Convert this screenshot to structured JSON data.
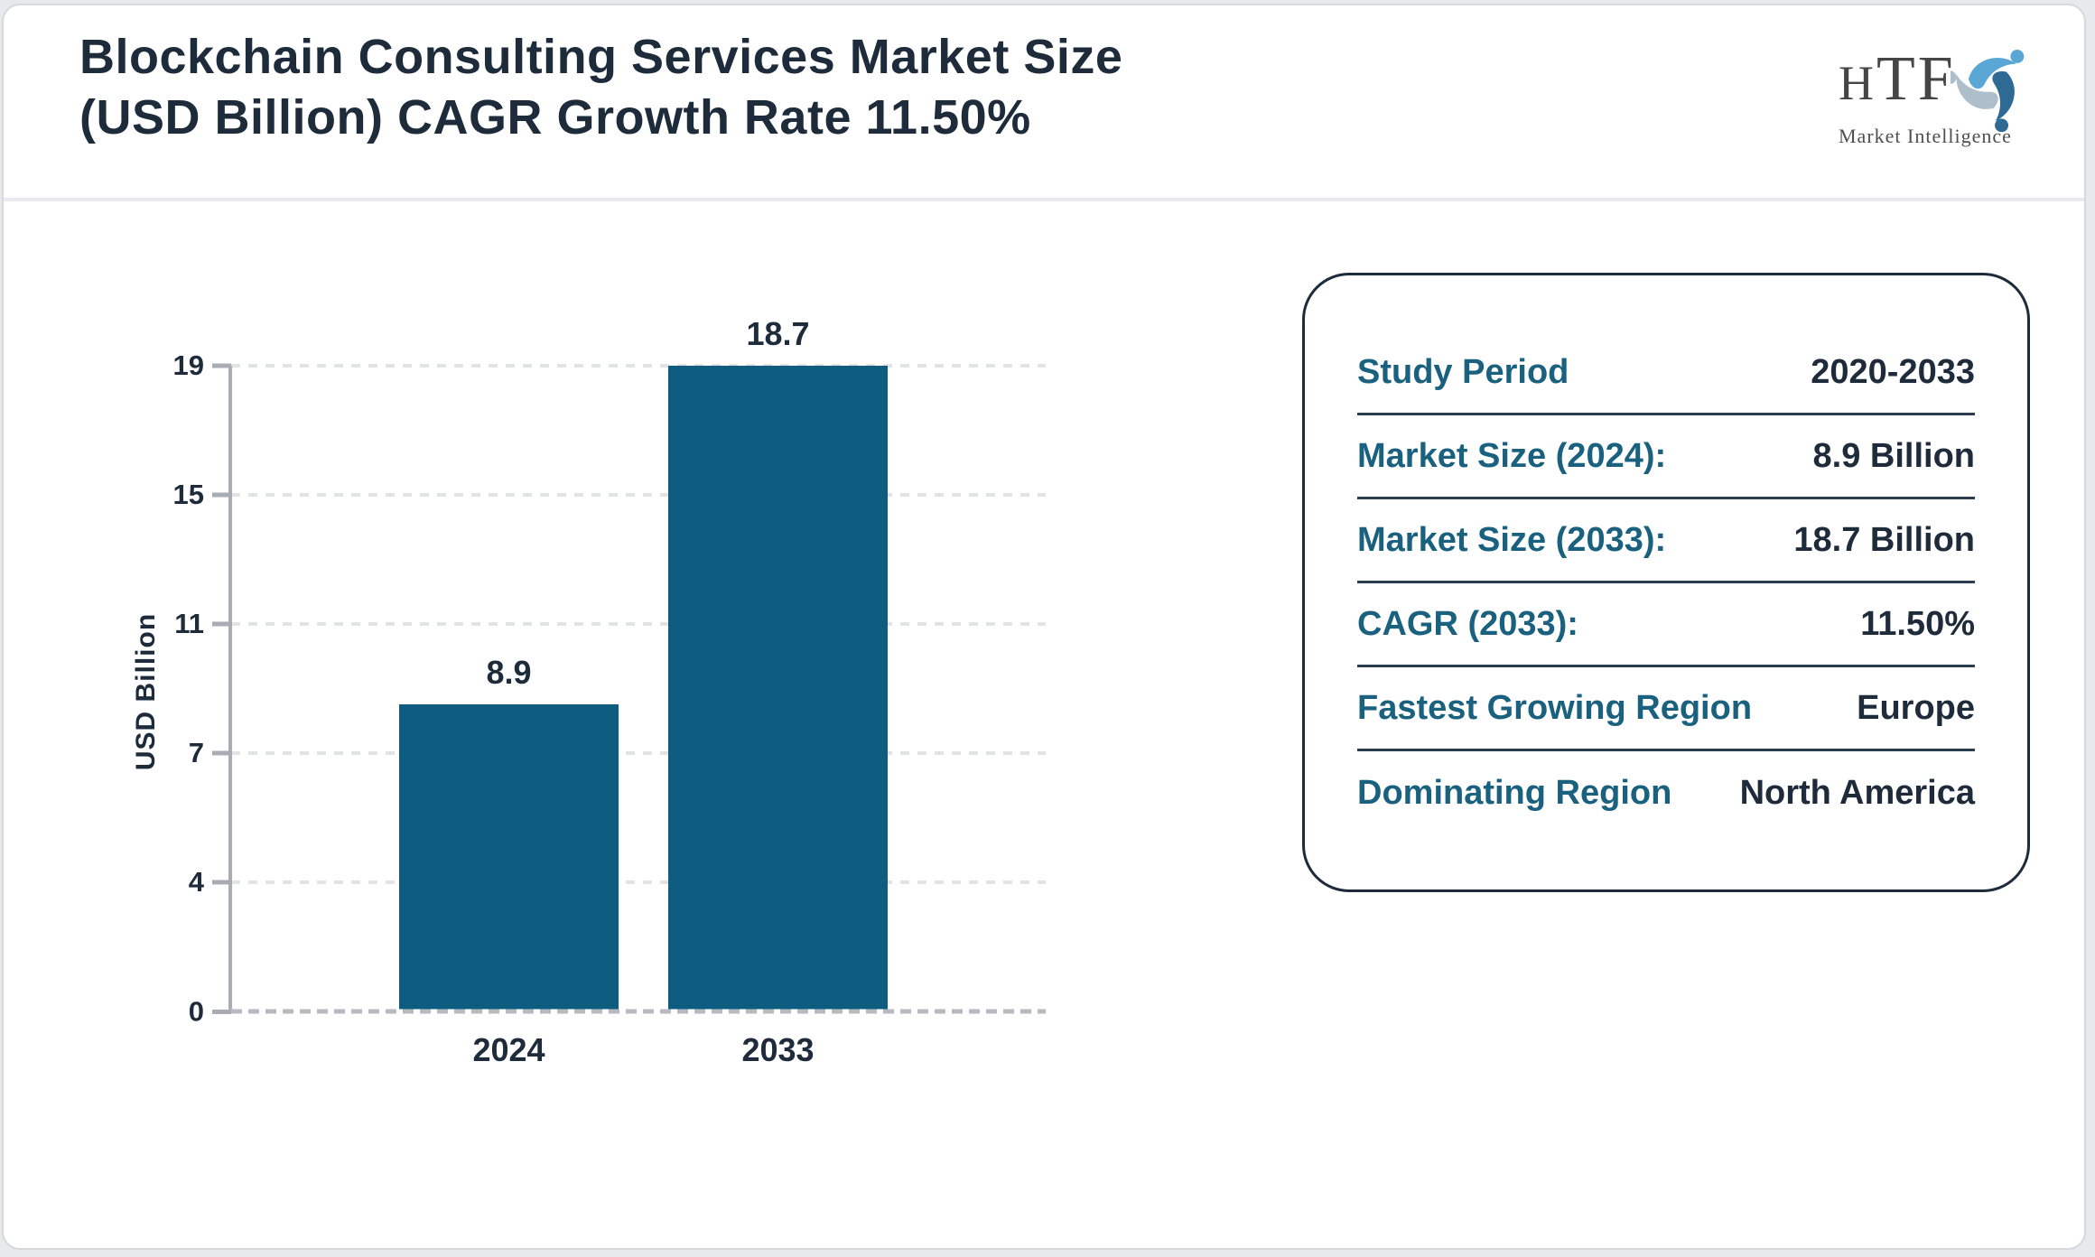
{
  "header": {
    "title_line1": "Blockchain Consulting Services Market Size",
    "title_line2": "(USD Billion) CAGR Growth Rate 11.50%",
    "logo": {
      "acronym_small": "H",
      "acronym_rest": "TF",
      "subtitle": "Market Intelligence"
    }
  },
  "chart_data": {
    "type": "bar",
    "title": "Blockchain Consulting Services Market Size (USD Billion) CAGR Growth Rate 11.50%",
    "categories": [
      "2024",
      "2033"
    ],
    "values": [
      8.9,
      18.7
    ],
    "value_labels": [
      "8.9",
      "18.7"
    ],
    "ylabel": "USD Billion",
    "ylim": [
      0,
      18.7
    ],
    "y_tick_labels": [
      "0",
      "4",
      "7",
      "11",
      "15",
      "19"
    ],
    "grid": true,
    "grid_style": "dashed",
    "legend_position": "none",
    "bar_color": "#0e5c80"
  },
  "panel": {
    "rows": [
      {
        "label": "Study Period",
        "value": "2020-2033"
      },
      {
        "label": "Market Size (2024):",
        "value": "8.9 Billion"
      },
      {
        "label": "Market Size (2033):",
        "value": "18.7 Billion"
      },
      {
        "label": "CAGR (2033):",
        "value": "11.50%"
      },
      {
        "label": "Fastest Growing Region",
        "value": "Europe"
      },
      {
        "label": "Dominating Region",
        "value": "North America"
      }
    ]
  },
  "colors": {
    "bar": "#0e5c80",
    "accent_teal": "#19617f",
    "dark_navy": "#1e2b3b",
    "axis_gray": "#a9acb3",
    "gridline_gray": "#e2e3e6",
    "page_border": "#d6d8dc",
    "logo_light_blue": "#5aa7d6",
    "logo_steel_blue": "#2e6a94",
    "logo_gray_blue": "#aebfcb"
  }
}
